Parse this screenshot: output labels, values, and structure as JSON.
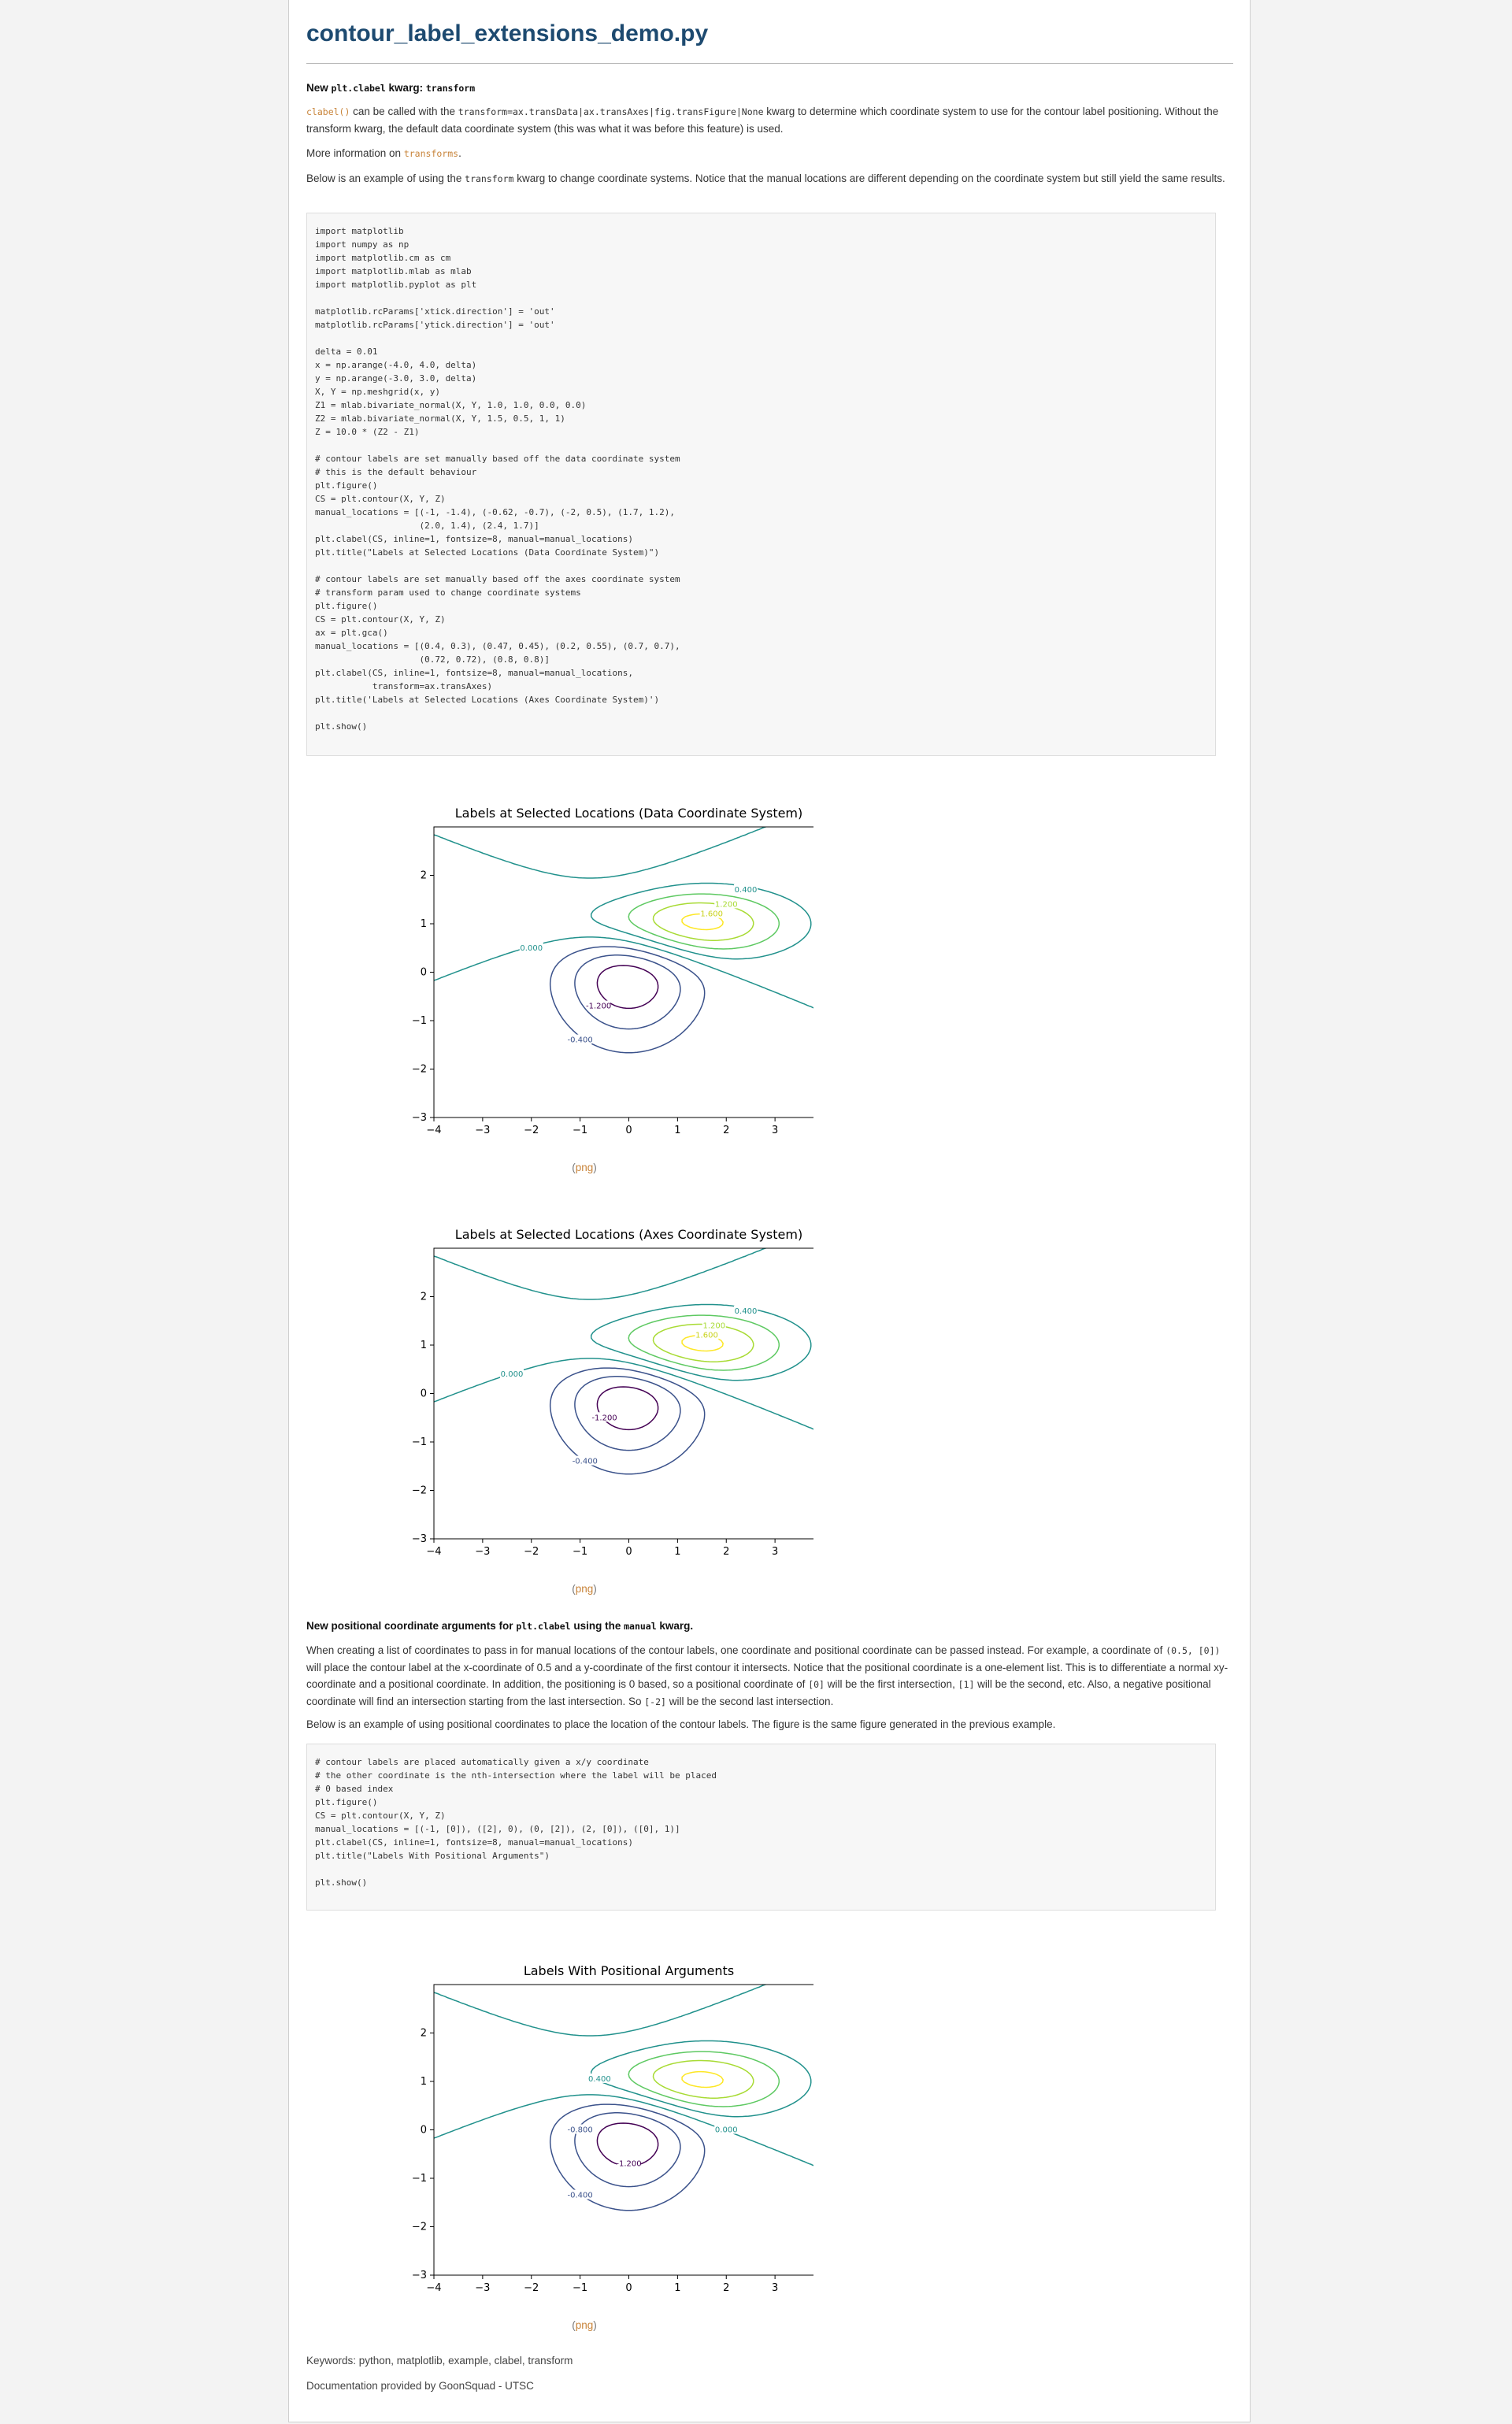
{
  "title": "contour_label_extensions_demo.py",
  "section1": {
    "heading_prefix": "New",
    "heading_code1": "plt.clabel",
    "heading_mid": "kwarg:",
    "heading_code2": "transform",
    "p1_link": "clabel()",
    "p1_text_a": "can be called with the",
    "p1_code": "transform=ax.transData|ax.transAxes|fig.transFigure|None",
    "p1_text_b": "kwarg to determine which coordinate system to use for the contour label positioning. Without the transform kwarg, the default data coordinate system (this was what it was before this feature) is used.",
    "p2_text": "More information on",
    "p2_link": "transforms",
    "p2_end": ".",
    "p3_text_a": "Below is an example of using the",
    "p3_code": "transform",
    "p3_text_b": "kwarg to change coordinate systems. Notice that the manual locations are different depending on the coordinate system but still yield the same results."
  },
  "code1": "import matplotlib\nimport numpy as np\nimport matplotlib.cm as cm\nimport matplotlib.mlab as mlab\nimport matplotlib.pyplot as plt\n\nmatplotlib.rcParams['xtick.direction'] = 'out'\nmatplotlib.rcParams['ytick.direction'] = 'out'\n\ndelta = 0.01\nx = np.arange(-4.0, 4.0, delta)\ny = np.arange(-3.0, 3.0, delta)\nX, Y = np.meshgrid(x, y)\nZ1 = mlab.bivariate_normal(X, Y, 1.0, 1.0, 0.0, 0.0)\nZ2 = mlab.bivariate_normal(X, Y, 1.5, 0.5, 1, 1)\nZ = 10.0 * (Z2 - Z1)\n\n# contour labels are set manually based off the data coordinate system\n# this is the default behaviour\nplt.figure()\nCS = plt.contour(X, Y, Z)\nmanual_locations = [(-1, -1.4), (-0.62, -0.7), (-2, 0.5), (1.7, 1.2),\n                    (2.0, 1.4), (2.4, 1.7)]\nplt.clabel(CS, inline=1, fontsize=8, manual=manual_locations)\nplt.title(\"Labels at Selected Locations (Data Coordinate System)\")\n\n# contour labels are set manually based off the axes coordinate system\n# transform param used to change coordinate systems\nplt.figure()\nCS = plt.contour(X, Y, Z)\nax = plt.gca()\nmanual_locations = [(0.4, 0.3), (0.47, 0.45), (0.2, 0.55), (0.7, 0.7),\n                    (0.72, 0.72), (0.8, 0.8)]\nplt.clabel(CS, inline=1, fontsize=8, manual=manual_locations,\n           transform=ax.transAxes)\nplt.title('Labels at Selected Locations (Axes Coordinate System)')\n\nplt.show()",
  "section2": {
    "heading_a": "New positional coordinate arguments for",
    "heading_code1": "plt.clabel",
    "heading_mid": "using the",
    "heading_code2": "manual",
    "heading_end": "kwarg.",
    "p1_a": "When creating a list of coordinates to pass in for manual locations of the contour labels, one coordinate and positional coordinate can be passed instead. For example, a coordinate of",
    "p1_code1": "(0.5, [0])",
    "p1_b": "will place the contour label at the x-coordinate of 0.5 and a y-coordinate of the first contour it intersects. Notice that the positional coordinate is a one-element list. This is to differentiate a normal xy-coordinate and a positional coordinate. In addition, the positioning is 0 based, so a positional coordinate of",
    "p1_code2": "[0]",
    "p1_c": "will be the first intersection,",
    "p1_code3": "[1]",
    "p1_d": "will be the second, etc. Also, a negative positional coordinate will find an intersection starting from the last intersection. So",
    "p1_code4": "[-2]",
    "p1_e": "will be the second last intersection.",
    "p2": "Below is an example of using positional coordinates to place the location of the contour labels. The figure is the same figure generated in the previous example."
  },
  "code2": "# contour labels are placed automatically given a x/y coordinate\n# the other coordinate is the nth-intersection where the label will be placed\n# 0 based index\nplt.figure()\nCS = plt.contour(X, Y, Z)\nmanual_locations = [(-1, [0]), ([2], 0), (0, [2]), (2, [0]), ([0], 1)]\nplt.clabel(CS, inline=1, fontsize=8, manual=manual_locations)\nplt.title(\"Labels With Positional Arguments\")\n\nplt.show()",
  "figure_link": {
    "open": "(",
    "text": "png",
    "close": ")"
  },
  "footer": {
    "keywords": "Keywords: python, matplotlib, example, clabel, transform",
    "credit": "Documentation provided by GoonSquad - UTSC"
  },
  "chart_data": [
    {
      "type": "contour",
      "title": "Labels at Selected Locations (Data Coordinate System)",
      "xlim": [
        -4,
        4
      ],
      "ylim": [
        -3,
        3
      ],
      "xticks": [
        "−4",
        "−3",
        "−2",
        "−1",
        "0",
        "1",
        "2",
        "3"
      ],
      "yticks": [
        "−3",
        "−2",
        "−1",
        "0",
        "1",
        "2"
      ],
      "colors": {
        "-1.2": "#440154",
        "-0.8": "#3b528b",
        "-0.4": "#3b528b",
        "0.0": "#21918c",
        "0.4": "#21918c",
        "0.8": "#5ec962",
        "1.2": "#a8db34",
        "1.6": "#fde725"
      },
      "labels": [
        {
          "text": "0.400",
          "x": 2.4,
          "y": 1.7,
          "color": "#21918c"
        },
        {
          "text": "1.200",
          "x": 2.0,
          "y": 1.4,
          "color": "#a8db34"
        },
        {
          "text": "1.600",
          "x": 1.7,
          "y": 1.2,
          "color": "#c9d21a"
        },
        {
          "text": "0.000",
          "x": -2.0,
          "y": 0.5,
          "color": "#21918c"
        },
        {
          "text": "-1.200",
          "x": -0.62,
          "y": -0.7,
          "color": "#440154"
        },
        {
          "text": "-0.400",
          "x": -1.0,
          "y": -1.4,
          "color": "#3b528b"
        }
      ]
    },
    {
      "type": "contour",
      "title": "Labels at Selected Locations (Axes Coordinate System)",
      "xlim": [
        -4,
        4
      ],
      "ylim": [
        -3,
        3
      ],
      "xticks": [
        "−4",
        "−3",
        "−2",
        "−1",
        "0",
        "1",
        "2",
        "3"
      ],
      "yticks": [
        "−3",
        "−2",
        "−1",
        "0",
        "1",
        "2"
      ],
      "labels": [
        {
          "text": "0.400",
          "x": 2.4,
          "y": 1.7,
          "color": "#21918c"
        },
        {
          "text": "1.200",
          "x": 1.75,
          "y": 1.4,
          "color": "#a8db34"
        },
        {
          "text": "1.600",
          "x": 1.6,
          "y": 1.2,
          "color": "#c9d21a"
        },
        {
          "text": "0.000",
          "x": -2.4,
          "y": 0.4,
          "color": "#21918c"
        },
        {
          "text": "-1.200",
          "x": -0.5,
          "y": -0.5,
          "color": "#440154"
        },
        {
          "text": "-0.400",
          "x": -0.9,
          "y": -1.4,
          "color": "#3b528b"
        }
      ]
    },
    {
      "type": "contour",
      "title": "Labels With Positional Arguments",
      "xlim": [
        -4,
        4
      ],
      "ylim": [
        -3,
        3
      ],
      "xticks": [
        "−4",
        "−3",
        "−2",
        "−1",
        "0",
        "1",
        "2",
        "3"
      ],
      "yticks": [
        "−3",
        "−2",
        "−1",
        "0",
        "1",
        "2"
      ],
      "labels": [
        {
          "text": "0.400",
          "x": -0.6,
          "y": 1.05,
          "color": "#21918c"
        },
        {
          "text": "0.000",
          "x": 2.0,
          "y": 0.0,
          "color": "#21918c"
        },
        {
          "text": "-0.800",
          "x": -1.0,
          "y": 0.0,
          "color": "#3b528b"
        },
        {
          "text": "-1.200",
          "x": 0.0,
          "y": -0.7,
          "color": "#440154"
        },
        {
          "text": "-0.400",
          "x": -1.0,
          "y": -1.35,
          "color": "#3b528b"
        }
      ]
    }
  ]
}
